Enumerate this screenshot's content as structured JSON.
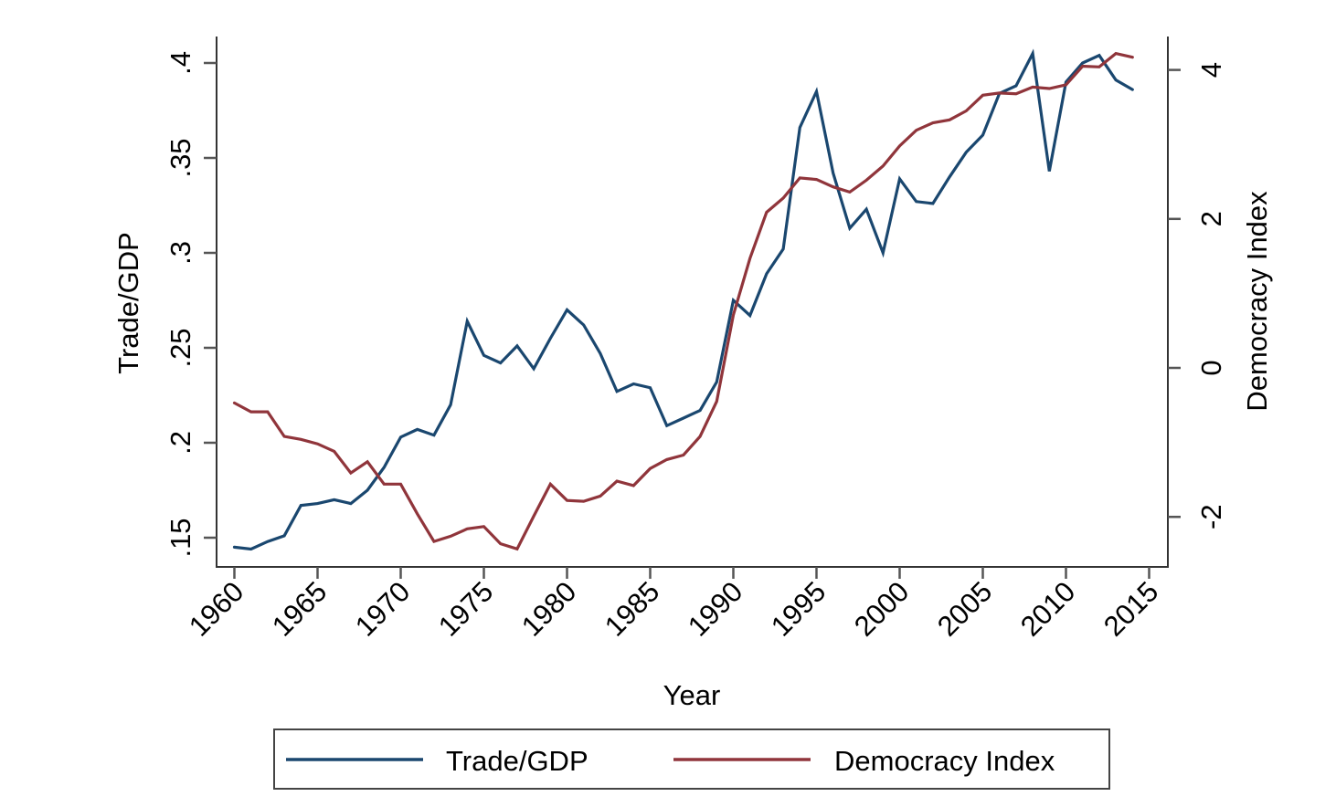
{
  "chart_data": {
    "type": "line",
    "title": "",
    "xlabel": "Year",
    "ylabel_left": "Trade/GDP",
    "ylabel_right": "Democracy Index",
    "x": [
      1960,
      1961,
      1962,
      1963,
      1964,
      1965,
      1966,
      1967,
      1968,
      1969,
      1970,
      1971,
      1972,
      1973,
      1974,
      1975,
      1976,
      1977,
      1978,
      1979,
      1980,
      1981,
      1982,
      1983,
      1984,
      1985,
      1986,
      1987,
      1988,
      1989,
      1990,
      1991,
      1992,
      1993,
      1994,
      1995,
      1996,
      1997,
      1998,
      1999,
      2000,
      2001,
      2002,
      2003,
      2004,
      2005,
      2006,
      2007,
      2008,
      2009,
      2010,
      2011,
      2012,
      2013,
      2014
    ],
    "xlim": [
      1960,
      2015
    ],
    "x_ticks": [
      1960,
      1965,
      1970,
      1975,
      1980,
      1985,
      1990,
      1995,
      2000,
      2005,
      2010,
      2015
    ],
    "x_tick_labels": [
      "1960",
      "1965",
      "1970",
      "1975",
      "1980",
      "1985",
      "1990",
      "1995",
      "2000",
      "2005",
      "2010",
      "2015"
    ],
    "y_left_ticks": [
      0.15,
      0.2,
      0.25,
      0.3,
      0.35,
      0.4
    ],
    "y_left_tick_labels": [
      ".15",
      ".2",
      ".25",
      ".3",
      ".35",
      ".4"
    ],
    "y_right_ticks": [
      -2,
      0,
      2,
      4
    ],
    "y_right_tick_labels": [
      "-2",
      "0",
      "2",
      "4"
    ],
    "grid": false,
    "legend_position": "bottom",
    "series": [
      {
        "name": "Trade/GDP",
        "axis": "left",
        "color": "#1a476f",
        "values": [
          0.145,
          0.144,
          0.148,
          0.151,
          0.167,
          0.168,
          0.17,
          0.168,
          0.175,
          0.187,
          0.203,
          0.207,
          0.204,
          0.22,
          0.264,
          0.246,
          0.242,
          0.251,
          0.239,
          0.255,
          0.27,
          0.262,
          0.247,
          0.227,
          0.231,
          0.229,
          0.209,
          0.213,
          0.217,
          0.232,
          0.275,
          0.267,
          0.289,
          0.302,
          0.366,
          0.385,
          0.342,
          0.313,
          0.323,
          0.3,
          0.339,
          0.327,
          0.326,
          0.34,
          0.353,
          0.362,
          0.384,
          0.388,
          0.405,
          0.343,
          0.39,
          0.4,
          0.404,
          0.391,
          0.386
        ]
      },
      {
        "name": "Democracy Index",
        "axis": "right",
        "color": "#90353b",
        "values": [
          -0.47,
          -0.59,
          -0.59,
          -0.92,
          -0.96,
          -1.02,
          -1.12,
          -1.41,
          -1.26,
          -1.56,
          -1.56,
          -1.96,
          -2.33,
          -2.26,
          -2.16,
          -2.13,
          -2.36,
          -2.43,
          -1.99,
          -1.56,
          -1.78,
          -1.79,
          -1.72,
          -1.52,
          -1.58,
          -1.35,
          -1.23,
          -1.17,
          -0.92,
          -0.45,
          0.71,
          1.47,
          2.09,
          2.28,
          2.55,
          2.53,
          2.43,
          2.36,
          2.52,
          2.71,
          2.98,
          3.19,
          3.29,
          3.33,
          3.45,
          3.66,
          3.69,
          3.68,
          3.77,
          3.75,
          3.8,
          4.05,
          4.04,
          4.22,
          4.17
        ]
      }
    ]
  }
}
